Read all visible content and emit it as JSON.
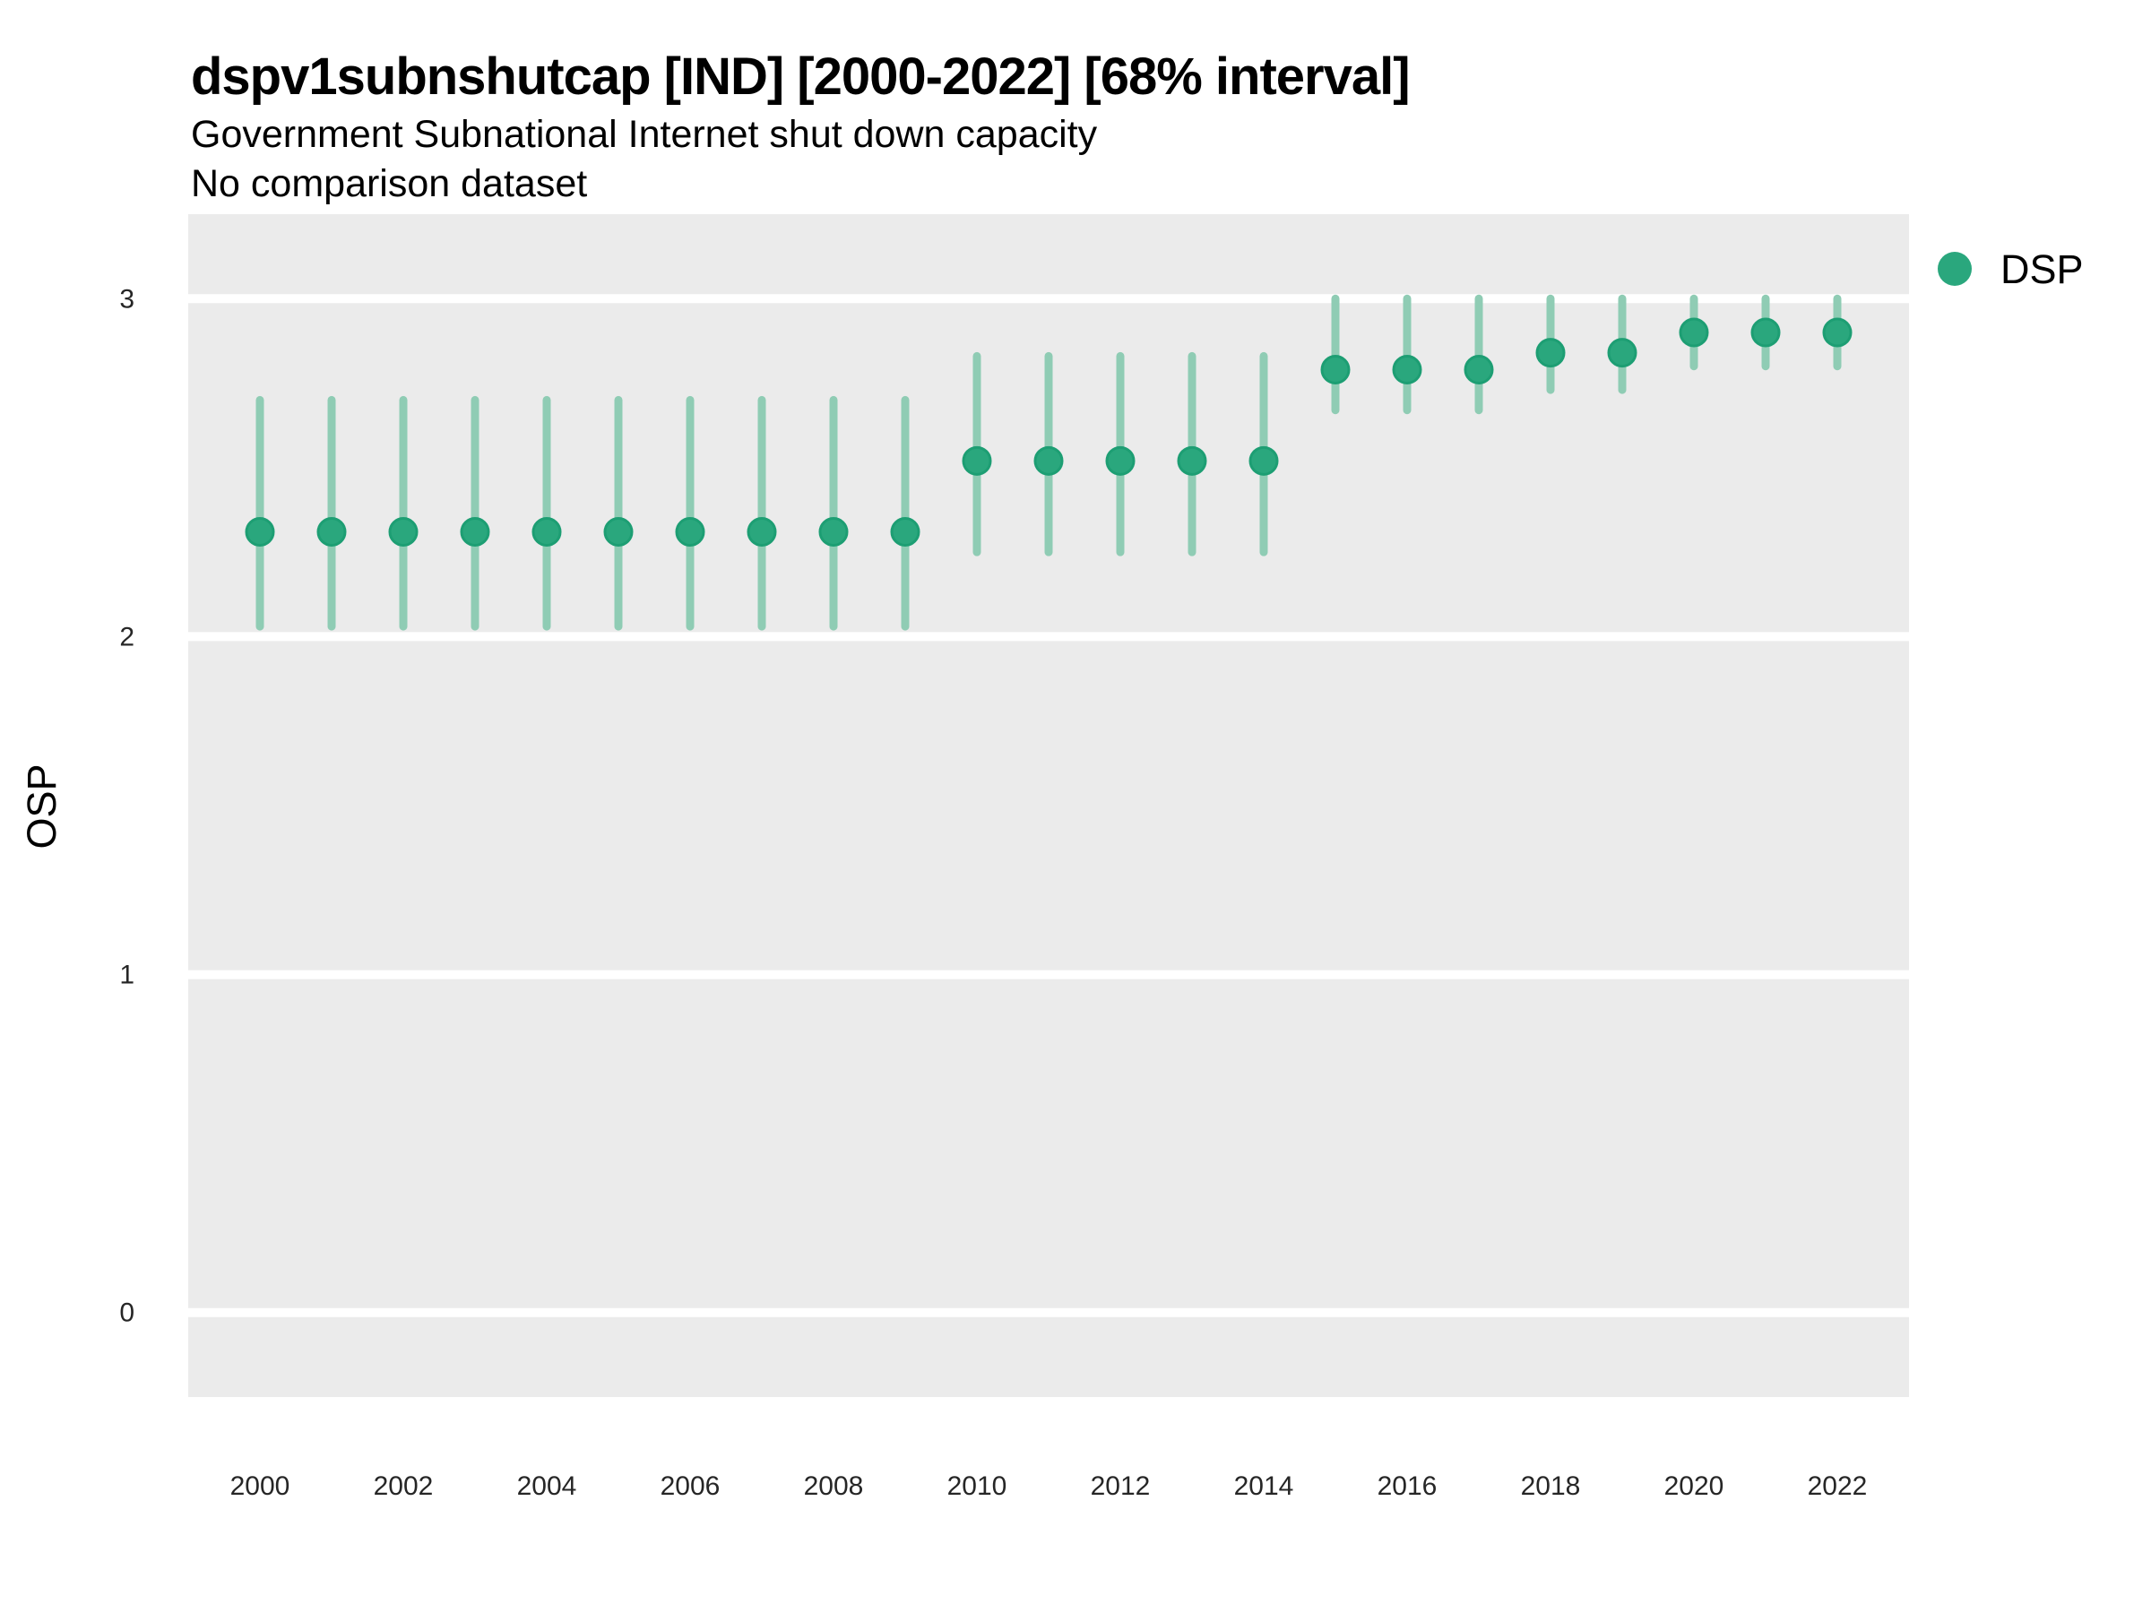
{
  "header": {
    "title": "dspv1subnshutcap [IND] [2000-2022] [68% interval]",
    "subtitle": "Government Subnational Internet shut down capacity",
    "caption": "No comparison dataset"
  },
  "legend": {
    "position": "right",
    "items": [
      {
        "label": "DSP",
        "color": "#2aa77d"
      }
    ]
  },
  "chart_data": {
    "type": "scatter",
    "subtype": "pointrange",
    "title": "dspv1subnshutcap [IND] [2000-2022] [68% interval]",
    "subtitle": "Government Subnational Internet shut down capacity",
    "note": "No comparison dataset",
    "interval": "68%",
    "xlabel": "",
    "ylabel": "OSP",
    "xlim": [
      1999,
      2023
    ],
    "ylim": [
      -0.25,
      3.25
    ],
    "xticks": [
      2000,
      2002,
      2004,
      2006,
      2008,
      2010,
      2012,
      2014,
      2016,
      2018,
      2020,
      2022
    ],
    "yticks": [
      0,
      1,
      2,
      3
    ],
    "grid": "horizontal-major-only",
    "legend_position": "right",
    "x": [
      2000,
      2001,
      2002,
      2003,
      2004,
      2005,
      2006,
      2007,
      2008,
      2009,
      2010,
      2011,
      2012,
      2013,
      2014,
      2015,
      2016,
      2017,
      2018,
      2019,
      2020,
      2021,
      2022
    ],
    "series": [
      {
        "name": "DSP",
        "values": [
          2.31,
          2.31,
          2.31,
          2.31,
          2.31,
          2.31,
          2.31,
          2.31,
          2.31,
          2.31,
          2.52,
          2.52,
          2.52,
          2.52,
          2.52,
          2.79,
          2.79,
          2.79,
          2.84,
          2.84,
          2.9,
          2.9,
          2.9
        ],
        "lower": [
          2.03,
          2.03,
          2.03,
          2.03,
          2.03,
          2.03,
          2.03,
          2.03,
          2.03,
          2.03,
          2.25,
          2.25,
          2.25,
          2.25,
          2.25,
          2.67,
          2.67,
          2.67,
          2.73,
          2.73,
          2.8,
          2.8,
          2.8
        ],
        "upper": [
          2.7,
          2.7,
          2.7,
          2.7,
          2.7,
          2.7,
          2.7,
          2.7,
          2.7,
          2.7,
          2.83,
          2.83,
          2.83,
          2.83,
          2.83,
          3.0,
          3.0,
          3.0,
          3.0,
          3.0,
          3.0,
          3.0,
          3.0
        ]
      }
    ]
  },
  "style": {
    "panel_bg": "#ebebeb",
    "grid_color": "#ffffff",
    "point_fill": "#2aa77d",
    "point_stroke": "#1d9e73",
    "interval_color": "#8fccb4",
    "tick_color": "#262626"
  }
}
